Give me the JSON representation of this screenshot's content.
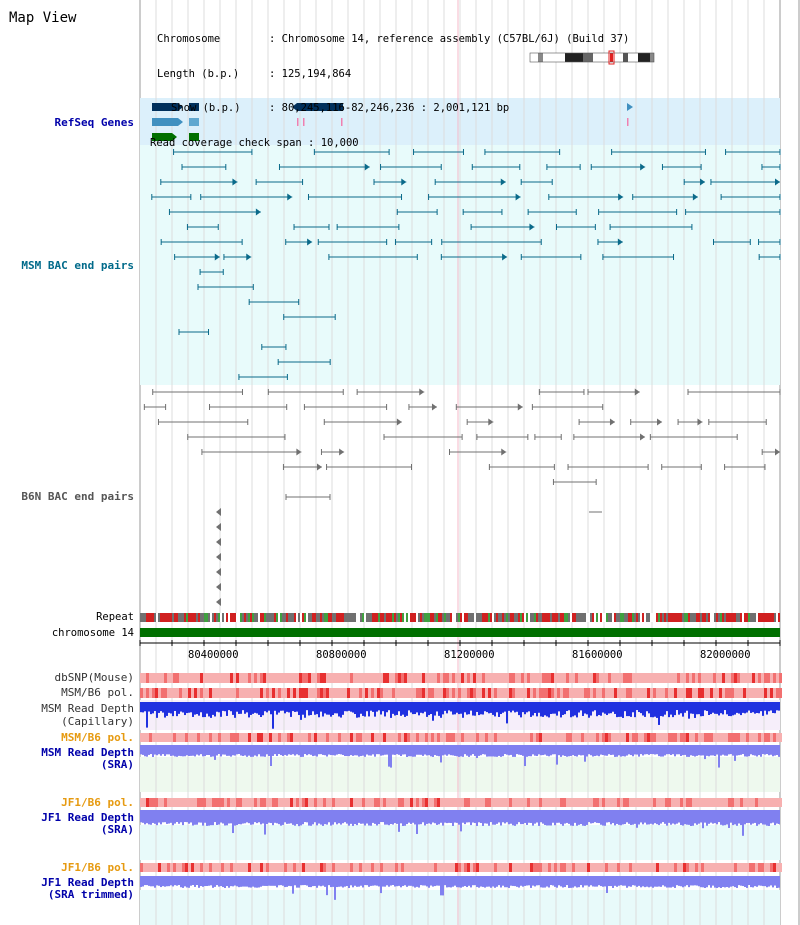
{
  "page": {
    "title": "Map View"
  },
  "info": {
    "chromosome_key": "Chromosome",
    "chromosome_val": "Chromosome 14, reference assembly (C57BL/6J) (Build 37)",
    "length_key": "Length (b.p.)",
    "length_val": "125,194,864",
    "show_key": "Show (b.p.)",
    "show_val": "80,245,116-82,246,236 : 2,001,121 bp",
    "coverage_key": "Read coverage check span",
    "coverage_val": "10,000"
  },
  "tracks": {
    "refseq": "RefSeq Genes",
    "msm_bac": "MSM BAC end pairs",
    "b6n_bac": "B6N BAC end pairs",
    "repeat": "Repeat",
    "chromosome": "chromosome 14",
    "dbsnp": "dbSNP(Mouse)",
    "msm_b6_pol": "MSM/B6 pol.",
    "msm_depth_cap_1": "MSM Read Depth",
    "msm_depth_cap_2": "(Capillary)",
    "msm_b6_pol2": "MSM/B6 pol.",
    "msm_depth_sra_1": "MSM Read Depth",
    "msm_depth_sra_2": "(SRA)",
    "jf1_pol": "JF1/B6 pol.",
    "jf1_depth_1": "JF1 Read Depth",
    "jf1_depth_2": "(SRA)",
    "jf1_pol2": "JF1/B6 pol.",
    "jf1_trim_1": "JF1 Read Depth",
    "jf1_trim_2": "(SRA trimmed)"
  },
  "axis": {
    "ticks": [
      "80400000",
      "80800000",
      "81200000",
      "81600000",
      "82000000"
    ]
  },
  "colors": {
    "refseq_bg": "#dcf0fb",
    "msm_bg": "#e8fbfb",
    "gene_dark": "#00305c",
    "gene_mid": "#4090c0",
    "gene_green": "#007000",
    "msm_line": "#0a6a8a",
    "b6n_line": "#707070",
    "chrom_green": "#007000",
    "depth_blue": "#2030e0",
    "depth_light": "#8080f0"
  }
}
